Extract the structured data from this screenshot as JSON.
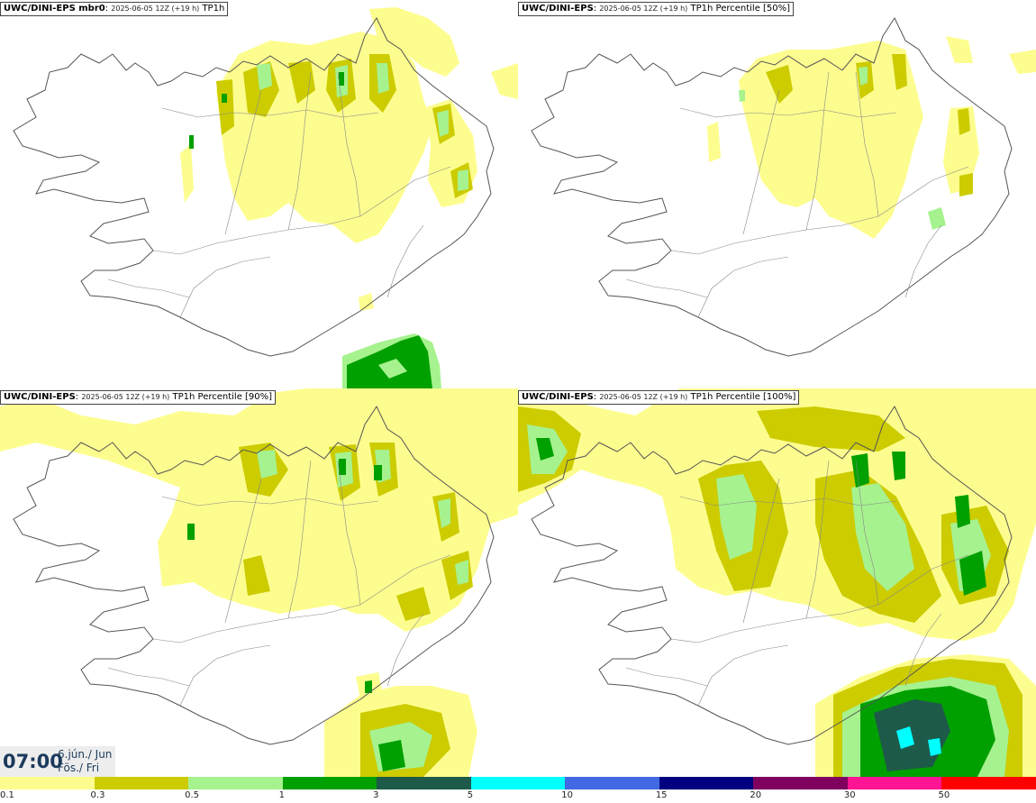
{
  "panels": [
    {
      "model": "UWC/DINI-EPS mbr0",
      "run": "2025-06-05 12Z (+19 h)",
      "field": "TP1h"
    },
    {
      "model": "UWC/DINI-EPS",
      "run": "2025-06-05 12Z (+19 h)",
      "field": "TP1h Percentile [50%]"
    },
    {
      "model": "UWC/DINI-EPS",
      "run": "2025-06-05 12Z (+19 h)",
      "field": "TP1h Percentile [90%]"
    },
    {
      "model": "UWC/DINI-EPS",
      "run": "2025-06-05 12Z (+19 h)",
      "field": "TP1h Percentile [100%]"
    }
  ],
  "time": {
    "clock": "07:00",
    "date_is": "6.jún./ Jun",
    "day": "Fös./ Fri"
  },
  "colorbar": {
    "colors": [
      "#fdfd8f",
      "#cccc00",
      "#a6f28f",
      "#00a000",
      "#1e5a4a",
      "#00ffff",
      "#4169e1",
      "#000080",
      "#800060",
      "#ff1493",
      "#ff0000"
    ],
    "labels": [
      "0.1",
      "0.3",
      "0.5",
      "1",
      "3",
      "5",
      "10",
      "15",
      "20",
      "30",
      "50"
    ]
  },
  "field_colors": {
    "light": "#fdfd8f",
    "olive": "#cccc00",
    "lightgreen": "#a6f28f",
    "green": "#00a000",
    "darkgreen": "#1e5a4a",
    "cyan": "#00ffff"
  }
}
